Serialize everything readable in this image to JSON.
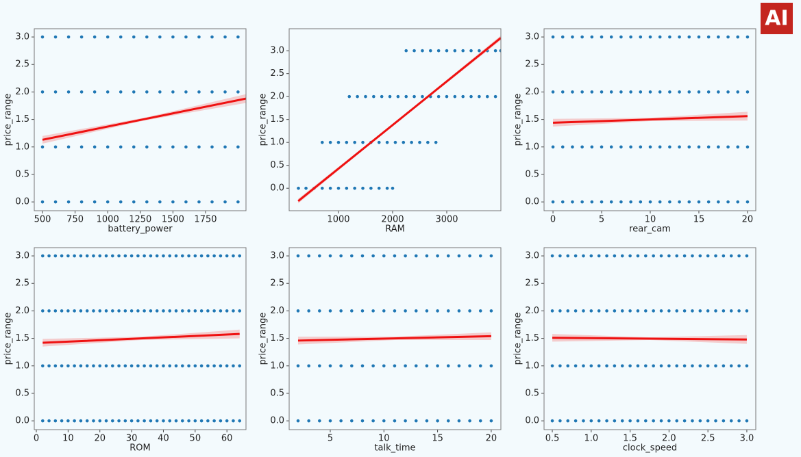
{
  "logo": "AI",
  "chart_data": [
    {
      "type": "scatter",
      "x_label": "battery_power",
      "y_label": "price_range",
      "point_color": "#1f77b4",
      "line_color": "#ee1111",
      "band_color": "#f4a6a6",
      "xlim": [
        437,
        2060
      ],
      "ylim": [
        -0.16,
        3.15
      ],
      "xticks": [
        500,
        750,
        1000,
        1250,
        1500,
        1750
      ],
      "yticks": [
        {
          "value": 0,
          "label": "0.0"
        },
        0.5,
        {
          "value": 1,
          "label": "1.0"
        },
        1.5,
        {
          "value": 2,
          "label": "2.0"
        },
        2.5,
        {
          "value": 3,
          "label": "3.0"
        }
      ],
      "rows": [
        {
          "y": 0,
          "x": [
            500,
            600,
            700,
            800,
            900,
            1000,
            1100,
            1200,
            1300,
            1400,
            1500,
            1600,
            1700,
            1800,
            1900,
            1999
          ]
        },
        {
          "y": 1,
          "x": [
            500,
            600,
            700,
            800,
            900,
            1000,
            1100,
            1200,
            1300,
            1400,
            1500,
            1600,
            1700,
            1800,
            1900,
            1999
          ]
        },
        {
          "y": 2,
          "x": [
            500,
            600,
            700,
            800,
            900,
            1000,
            1100,
            1200,
            1300,
            1400,
            1500,
            1600,
            1700,
            1800,
            1900,
            1999
          ]
        },
        {
          "y": 3,
          "x": [
            500,
            600,
            700,
            800,
            900,
            1000,
            1100,
            1200,
            1300,
            1400,
            1500,
            1600,
            1700,
            1800,
            1900,
            1999
          ]
        }
      ],
      "fit": {
        "x": [
          500,
          1280,
          2060
        ],
        "y": [
          1.13,
          1.505,
          1.88
        ],
        "lower": [
          1.06,
          1.48,
          1.8
        ],
        "upper": [
          1.2,
          1.53,
          1.96
        ]
      }
    },
    {
      "type": "scatter",
      "x_label": "RAM",
      "y_label": "price_range",
      "point_color": "#1f77b4",
      "line_color": "#ee1111",
      "band_color": "#f4a6a6",
      "xlim": [
        89,
        4000
      ],
      "ylim": [
        -0.49,
        3.48
      ],
      "xticks": [
        1000,
        2000,
        3000
      ],
      "yticks": [
        {
          "value": 0,
          "label": "0.0"
        },
        0.5,
        {
          "value": 1,
          "label": "1.0"
        },
        1.5,
        {
          "value": 2,
          "label": "2.0"
        },
        2.5,
        {
          "value": 3,
          "label": "3.0"
        }
      ],
      "rows": [
        {
          "y": 0,
          "x": [
            260,
            400,
            550,
            700,
            850,
            1000,
            1150,
            1300,
            1450,
            1600,
            1750,
            1900,
            2000
          ]
        },
        {
          "y": 1,
          "x": [
            700,
            850,
            1000,
            1150,
            1300,
            1450,
            1600,
            1750,
            1900,
            2050,
            2200,
            2350,
            2500,
            2650,
            2800
          ]
        },
        {
          "y": 2,
          "x": [
            1200,
            1350,
            1500,
            1650,
            1800,
            1950,
            2100,
            2250,
            2400,
            2550,
            2700,
            2850,
            3000,
            3150,
            3300,
            3450,
            3600,
            3750,
            3900
          ]
        },
        {
          "y": 3,
          "x": [
            2250,
            2400,
            2550,
            2700,
            2850,
            3000,
            3150,
            3300,
            3450,
            3600,
            3750,
            3900,
            3998
          ]
        }
      ],
      "fit": {
        "x": [
          256,
          2127,
          3998
        ],
        "y": [
          -0.28,
          1.5,
          3.28
        ],
        "lower": [
          -0.33,
          1.48,
          3.23
        ],
        "upper": [
          -0.23,
          1.52,
          3.33
        ]
      }
    },
    {
      "type": "scatter",
      "x_label": "rear_cam",
      "y_label": "price_range",
      "point_color": "#1f77b4",
      "line_color": "#ee1111",
      "band_color": "#f4a6a6",
      "xlim": [
        -0.92,
        20.85
      ],
      "ylim": [
        -0.16,
        3.15
      ],
      "xticks": [
        0,
        5,
        10,
        15,
        20
      ],
      "yticks": [
        {
          "value": 0,
          "label": "0.0"
        },
        0.5,
        {
          "value": 1,
          "label": "1.0"
        },
        1.5,
        {
          "value": 2,
          "label": "2.0"
        },
        2.5,
        {
          "value": 3,
          "label": "3.0"
        }
      ],
      "rows": [
        {
          "y": 0,
          "x": [
            0,
            1,
            2,
            3,
            4,
            5,
            6,
            7,
            8,
            9,
            10,
            11,
            12,
            13,
            14,
            15,
            16,
            17,
            18,
            19,
            20
          ]
        },
        {
          "y": 1,
          "x": [
            0,
            1,
            2,
            3,
            4,
            5,
            6,
            7,
            8,
            9,
            10,
            11,
            12,
            13,
            14,
            15,
            16,
            17,
            18,
            19,
            20
          ]
        },
        {
          "y": 2,
          "x": [
            0,
            1,
            2,
            3,
            4,
            5,
            6,
            7,
            8,
            9,
            10,
            11,
            12,
            13,
            14,
            15,
            16,
            17,
            18,
            19,
            20
          ]
        },
        {
          "y": 3,
          "x": [
            0,
            1,
            2,
            3,
            4,
            5,
            6,
            7,
            8,
            9,
            10,
            11,
            12,
            13,
            14,
            15,
            16,
            17,
            18,
            19,
            20
          ]
        }
      ],
      "fit": {
        "x": [
          0,
          10,
          20
        ],
        "y": [
          1.44,
          1.5,
          1.56
        ],
        "lower": [
          1.37,
          1.47,
          1.48
        ],
        "upper": [
          1.51,
          1.53,
          1.64
        ]
      }
    },
    {
      "type": "scatter",
      "x_label": "ROM",
      "y_label": "price_range",
      "point_color": "#1f77b4",
      "line_color": "#ee1111",
      "band_color": "#f4a6a6",
      "xlim": [
        -0.65,
        66
      ],
      "ylim": [
        -0.16,
        3.15
      ],
      "xticks": [
        0,
        10,
        20,
        30,
        40,
        50,
        60
      ],
      "yticks": [
        {
          "value": 0,
          "label": "0.0"
        },
        0.5,
        {
          "value": 1,
          "label": "1.0"
        },
        1.5,
        {
          "value": 2,
          "label": "2.0"
        },
        2.5,
        {
          "value": 3,
          "label": "3.0"
        }
      ],
      "rows": [
        {
          "y": 0,
          "x": [
            2,
            4,
            6,
            8,
            10,
            12,
            14,
            16,
            18,
            20,
            22,
            24,
            26,
            28,
            30,
            32,
            34,
            36,
            38,
            40,
            42,
            44,
            46,
            48,
            50,
            52,
            54,
            56,
            58,
            60,
            62,
            64
          ]
        },
        {
          "y": 1,
          "x": [
            2,
            4,
            6,
            8,
            10,
            12,
            14,
            16,
            18,
            20,
            22,
            24,
            26,
            28,
            30,
            32,
            34,
            36,
            38,
            40,
            42,
            44,
            46,
            48,
            50,
            52,
            54,
            56,
            58,
            60,
            62,
            64
          ]
        },
        {
          "y": 2,
          "x": [
            2,
            4,
            6,
            8,
            10,
            12,
            14,
            16,
            18,
            20,
            22,
            24,
            26,
            28,
            30,
            32,
            34,
            36,
            38,
            40,
            42,
            44,
            46,
            48,
            50,
            52,
            54,
            56,
            58,
            60,
            62,
            64
          ]
        },
        {
          "y": 3,
          "x": [
            2,
            4,
            6,
            8,
            10,
            12,
            14,
            16,
            18,
            20,
            22,
            24,
            26,
            28,
            30,
            32,
            34,
            36,
            38,
            40,
            42,
            44,
            46,
            48,
            50,
            52,
            54,
            56,
            58,
            60,
            62,
            64
          ]
        }
      ],
      "fit": {
        "x": [
          2,
          33,
          64
        ],
        "y": [
          1.42,
          1.5,
          1.58
        ],
        "lower": [
          1.35,
          1.47,
          1.5
        ],
        "upper": [
          1.49,
          1.53,
          1.66
        ]
      }
    },
    {
      "type": "scatter",
      "x_label": "talk_time",
      "y_label": "price_range",
      "point_color": "#1f77b4",
      "line_color": "#ee1111",
      "band_color": "#f4a6a6",
      "xlim": [
        1.17,
        20.9
      ],
      "ylim": [
        -0.16,
        3.15
      ],
      "xticks": [
        5,
        10,
        15,
        20
      ],
      "yticks": [
        {
          "value": 0,
          "label": "0.0"
        },
        0.5,
        {
          "value": 1,
          "label": "1.0"
        },
        1.5,
        {
          "value": 2,
          "label": "2.0"
        },
        2.5,
        {
          "value": 3,
          "label": "3.0"
        }
      ],
      "rows": [
        {
          "y": 0,
          "x": [
            2,
            3,
            4,
            5,
            6,
            7,
            8,
            9,
            10,
            11,
            12,
            13,
            14,
            15,
            16,
            17,
            18,
            19,
            20
          ]
        },
        {
          "y": 1,
          "x": [
            2,
            3,
            4,
            5,
            6,
            7,
            8,
            9,
            10,
            11,
            12,
            13,
            14,
            15,
            16,
            17,
            18,
            19,
            20
          ]
        },
        {
          "y": 2,
          "x": [
            2,
            3,
            4,
            5,
            6,
            7,
            8,
            9,
            10,
            11,
            12,
            13,
            14,
            15,
            16,
            17,
            18,
            19,
            20
          ]
        },
        {
          "y": 3,
          "x": [
            2,
            3,
            4,
            5,
            6,
            7,
            8,
            9,
            10,
            11,
            12,
            13,
            14,
            15,
            16,
            17,
            18,
            19,
            20
          ]
        }
      ],
      "fit": {
        "x": [
          2,
          11,
          20
        ],
        "y": [
          1.46,
          1.5,
          1.54
        ],
        "lower": [
          1.39,
          1.47,
          1.47
        ],
        "upper": [
          1.53,
          1.53,
          1.61
        ]
      }
    },
    {
      "type": "scatter",
      "x_label": "clock_speed",
      "y_label": "price_range",
      "point_color": "#1f77b4",
      "line_color": "#ee1111",
      "band_color": "#f4a6a6",
      "xlim": [
        0.394,
        3.115
      ],
      "ylim": [
        -0.16,
        3.15
      ],
      "xticks": [
        0.5,
        {
          "value": 1,
          "label": "1.0"
        },
        1.5,
        {
          "value": 2,
          "label": "2.0"
        },
        2.5,
        {
          "value": 3,
          "label": "3.0"
        }
      ],
      "yticks": [
        {
          "value": 0,
          "label": "0.0"
        },
        0.5,
        {
          "value": 1,
          "label": "1.0"
        },
        1.5,
        {
          "value": 2,
          "label": "2.0"
        },
        2.5,
        {
          "value": 3,
          "label": "3.0"
        }
      ],
      "rows": [
        {
          "y": 0,
          "x": [
            0.5,
            0.6,
            0.7,
            0.8,
            0.9,
            1.0,
            1.1,
            1.2,
            1.3,
            1.4,
            1.5,
            1.6,
            1.7,
            1.8,
            1.9,
            2.0,
            2.1,
            2.2,
            2.3,
            2.4,
            2.5,
            2.6,
            2.7,
            2.8,
            2.9,
            3.0
          ]
        },
        {
          "y": 1,
          "x": [
            0.5,
            0.6,
            0.7,
            0.8,
            0.9,
            1.0,
            1.1,
            1.2,
            1.3,
            1.4,
            1.5,
            1.6,
            1.7,
            1.8,
            1.9,
            2.0,
            2.1,
            2.2,
            2.3,
            2.4,
            2.5,
            2.6,
            2.7,
            2.8,
            2.9,
            3.0
          ]
        },
        {
          "y": 2,
          "x": [
            0.5,
            0.6,
            0.7,
            0.8,
            0.9,
            1.0,
            1.1,
            1.2,
            1.3,
            1.4,
            1.5,
            1.6,
            1.7,
            1.8,
            1.9,
            2.0,
            2.1,
            2.2,
            2.3,
            2.4,
            2.5,
            2.6,
            2.7,
            2.8,
            2.9,
            3.0
          ]
        },
        {
          "y": 3,
          "x": [
            0.5,
            0.6,
            0.7,
            0.8,
            0.9,
            1.0,
            1.1,
            1.2,
            1.3,
            1.4,
            1.5,
            1.6,
            1.7,
            1.8,
            1.9,
            2.0,
            2.1,
            2.2,
            2.3,
            2.4,
            2.5,
            2.6,
            2.7,
            2.8,
            2.9,
            3.0
          ]
        }
      ],
      "fit": {
        "x": [
          0.5,
          1.75,
          3.0
        ],
        "y": [
          1.51,
          1.495,
          1.48
        ],
        "lower": [
          1.44,
          1.47,
          1.4
        ],
        "upper": [
          1.58,
          1.52,
          1.56
        ]
      }
    }
  ]
}
